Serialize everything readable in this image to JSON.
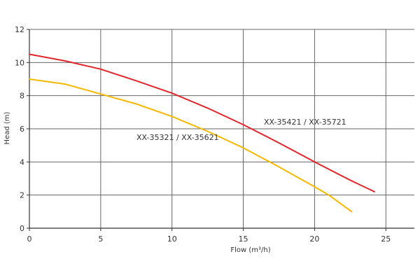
{
  "chart_data": {
    "type": "line",
    "title": "",
    "xlabel": "Flow (m³/h)",
    "ylabel": "Head (m)",
    "xlim": [
      0,
      27
    ],
    "ylim": [
      0,
      12
    ],
    "xticks": [
      0,
      5,
      10,
      15,
      20,
      25
    ],
    "yticks": [
      0,
      2,
      4,
      6,
      8,
      10,
      12
    ],
    "grid": true,
    "series": [
      {
        "name": "XX-35421 / XX-35721",
        "color": "#e0262a",
        "x": [
          0,
          2.5,
          5,
          7.5,
          10,
          12.5,
          15,
          17.5,
          20,
          22.5,
          24.2
        ],
        "y": [
          10.5,
          10.1,
          9.6,
          8.9,
          8.15,
          7.25,
          6.25,
          5.15,
          4.0,
          2.9,
          2.2
        ]
      },
      {
        "name": "XX-35321 / XX-35621",
        "color": "#f5b800",
        "x": [
          0,
          2.5,
          5,
          7.5,
          10,
          12.5,
          15,
          17.5,
          20,
          21,
          22.6
        ],
        "y": [
          9.0,
          8.7,
          8.1,
          7.5,
          6.75,
          5.85,
          4.85,
          3.7,
          2.5,
          2.0,
          1.0
        ]
      }
    ]
  }
}
